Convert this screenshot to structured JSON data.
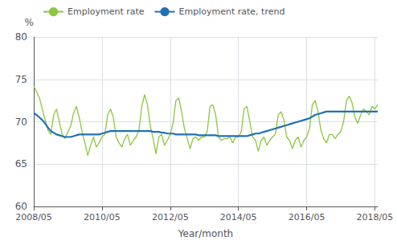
{
  "chart_data": {
    "type": "line",
    "xlabel": "Year/month",
    "ylabel": "%",
    "categories": [
      "2008/05",
      null,
      null,
      null,
      null,
      null,
      null,
      null,
      null,
      null,
      null,
      null,
      null,
      null,
      null,
      null,
      null,
      null,
      null,
      null,
      null,
      null,
      null,
      null,
      "2010/05",
      null,
      null,
      null,
      null,
      null,
      null,
      null,
      null,
      null,
      null,
      null,
      null,
      null,
      null,
      null,
      null,
      null,
      null,
      null,
      null,
      null,
      null,
      null,
      "2012/05",
      null,
      null,
      null,
      null,
      null,
      null,
      null,
      null,
      null,
      null,
      null,
      null,
      null,
      null,
      null,
      null,
      null,
      null,
      null,
      null,
      null,
      null,
      null,
      "2014/05",
      null,
      null,
      null,
      null,
      null,
      null,
      null,
      null,
      null,
      null,
      null,
      null,
      null,
      null,
      null,
      null,
      null,
      null,
      null,
      null,
      null,
      null,
      null,
      "2016/05",
      null,
      null,
      null,
      null,
      null,
      null,
      null,
      null,
      null,
      null,
      null,
      null,
      null,
      null,
      null,
      null,
      null,
      null,
      null,
      null,
      null,
      null,
      null,
      "2018/05",
      null
    ],
    "series": [
      {
        "name": "Employment rate",
        "color": "#8dc63f",
        "values": [
          74.2,
          73.5,
          72.8,
          71.5,
          70.2,
          69.0,
          68.5,
          70.8,
          71.5,
          70.0,
          68.5,
          68.0,
          68.8,
          69.5,
          71.0,
          71.8,
          70.5,
          68.8,
          67.5,
          66.0,
          67.2,
          68.2,
          67.0,
          67.5,
          68.2,
          68.5,
          70.8,
          71.5,
          70.5,
          68.2,
          67.5,
          67.0,
          68.0,
          68.5,
          67.2,
          67.8,
          68.2,
          69.0,
          71.8,
          73.2,
          72.0,
          69.5,
          68.0,
          66.2,
          68.2,
          68.5,
          67.2,
          67.8,
          68.5,
          69.8,
          72.5,
          72.8,
          71.2,
          69.2,
          68.0,
          66.8,
          68.0,
          68.2,
          67.8,
          68.2,
          68.2,
          68.8,
          71.8,
          72.0,
          70.8,
          68.2,
          67.8,
          68.0,
          68.0,
          68.2,
          67.5,
          68.2,
          68.2,
          68.8,
          71.5,
          71.8,
          70.0,
          68.2,
          67.8,
          66.5,
          67.8,
          68.2,
          67.2,
          67.8,
          68.2,
          68.5,
          70.8,
          71.2,
          70.2,
          68.2,
          67.8,
          66.8,
          67.8,
          68.2,
          67.0,
          67.8,
          68.2,
          69.2,
          72.0,
          72.5,
          71.2,
          69.0,
          68.0,
          67.5,
          68.5,
          68.5,
          68.0,
          68.5,
          68.8,
          70.0,
          72.5,
          73.0,
          72.2,
          70.5,
          69.8,
          70.8,
          71.5,
          71.2,
          70.8,
          71.8,
          71.5,
          72.0
        ]
      },
      {
        "name": "Employment rate, trend",
        "color": "#2270b5",
        "values": [
          71.0,
          70.8,
          70.5,
          70.2,
          69.8,
          69.3,
          68.9,
          68.7,
          68.5,
          68.4,
          68.3,
          68.2,
          68.2,
          68.2,
          68.3,
          68.4,
          68.5,
          68.5,
          68.5,
          68.5,
          68.5,
          68.5,
          68.5,
          68.5,
          68.6,
          68.7,
          68.8,
          68.9,
          68.9,
          68.9,
          68.9,
          68.9,
          68.9,
          68.9,
          68.9,
          68.9,
          68.9,
          68.9,
          68.9,
          68.9,
          68.9,
          68.9,
          68.8,
          68.8,
          68.8,
          68.7,
          68.7,
          68.6,
          68.6,
          68.6,
          68.5,
          68.5,
          68.5,
          68.5,
          68.5,
          68.5,
          68.5,
          68.5,
          68.4,
          68.4,
          68.4,
          68.4,
          68.4,
          68.4,
          68.4,
          68.3,
          68.3,
          68.3,
          68.3,
          68.3,
          68.3,
          68.3,
          68.3,
          68.3,
          68.3,
          68.3,
          68.4,
          68.5,
          68.6,
          68.6,
          68.7,
          68.8,
          68.9,
          69.0,
          69.1,
          69.2,
          69.3,
          69.4,
          69.5,
          69.6,
          69.7,
          69.8,
          69.9,
          70.0,
          70.1,
          70.2,
          70.3,
          70.4,
          70.6,
          70.8,
          70.9,
          71.0,
          71.1,
          71.2,
          71.2,
          71.2,
          71.2,
          71.2,
          71.2,
          71.2,
          71.2,
          71.2,
          71.2,
          71.2,
          71.2,
          71.2,
          71.2,
          71.2,
          71.2,
          71.2,
          71.2,
          71.2
        ]
      }
    ],
    "ylim": [
      60,
      80
    ],
    "yticks": [
      60,
      65,
      70,
      75,
      80
    ],
    "grid": true,
    "legend": "upper left"
  }
}
